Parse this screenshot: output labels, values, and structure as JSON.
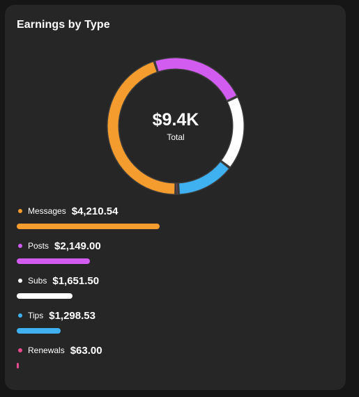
{
  "card": {
    "title": "Earnings by Type"
  },
  "donut": {
    "value": "$9.4K",
    "label": "Total"
  },
  "chart_data": {
    "type": "pie",
    "categories": [
      "Messages",
      "Posts",
      "Subs",
      "Tips",
      "Renewals"
    ],
    "values": [
      4210.54,
      2149.0,
      1651.5,
      1298.53,
      63.0
    ],
    "colors": [
      "#f49c2e",
      "#d25cf0",
      "#ffffff",
      "#3fb0f0",
      "#e84a8f"
    ]
  },
  "legend": [
    {
      "name": "Messages",
      "amount": "$4,210.54",
      "value": 4210.54,
      "color": "#f49c2e"
    },
    {
      "name": "Posts",
      "amount": "$2,149.00",
      "value": 2149.0,
      "color": "#d25cf0"
    },
    {
      "name": "Subs",
      "amount": "$1,651.50",
      "value": 1651.5,
      "color": "#ffffff"
    },
    {
      "name": "Tips",
      "amount": "$1,298.53",
      "value": 1298.53,
      "color": "#3fb0f0"
    },
    {
      "name": "Renewals",
      "amount": "$63.00",
      "value": 63.0,
      "color": "#e84a8f"
    }
  ]
}
